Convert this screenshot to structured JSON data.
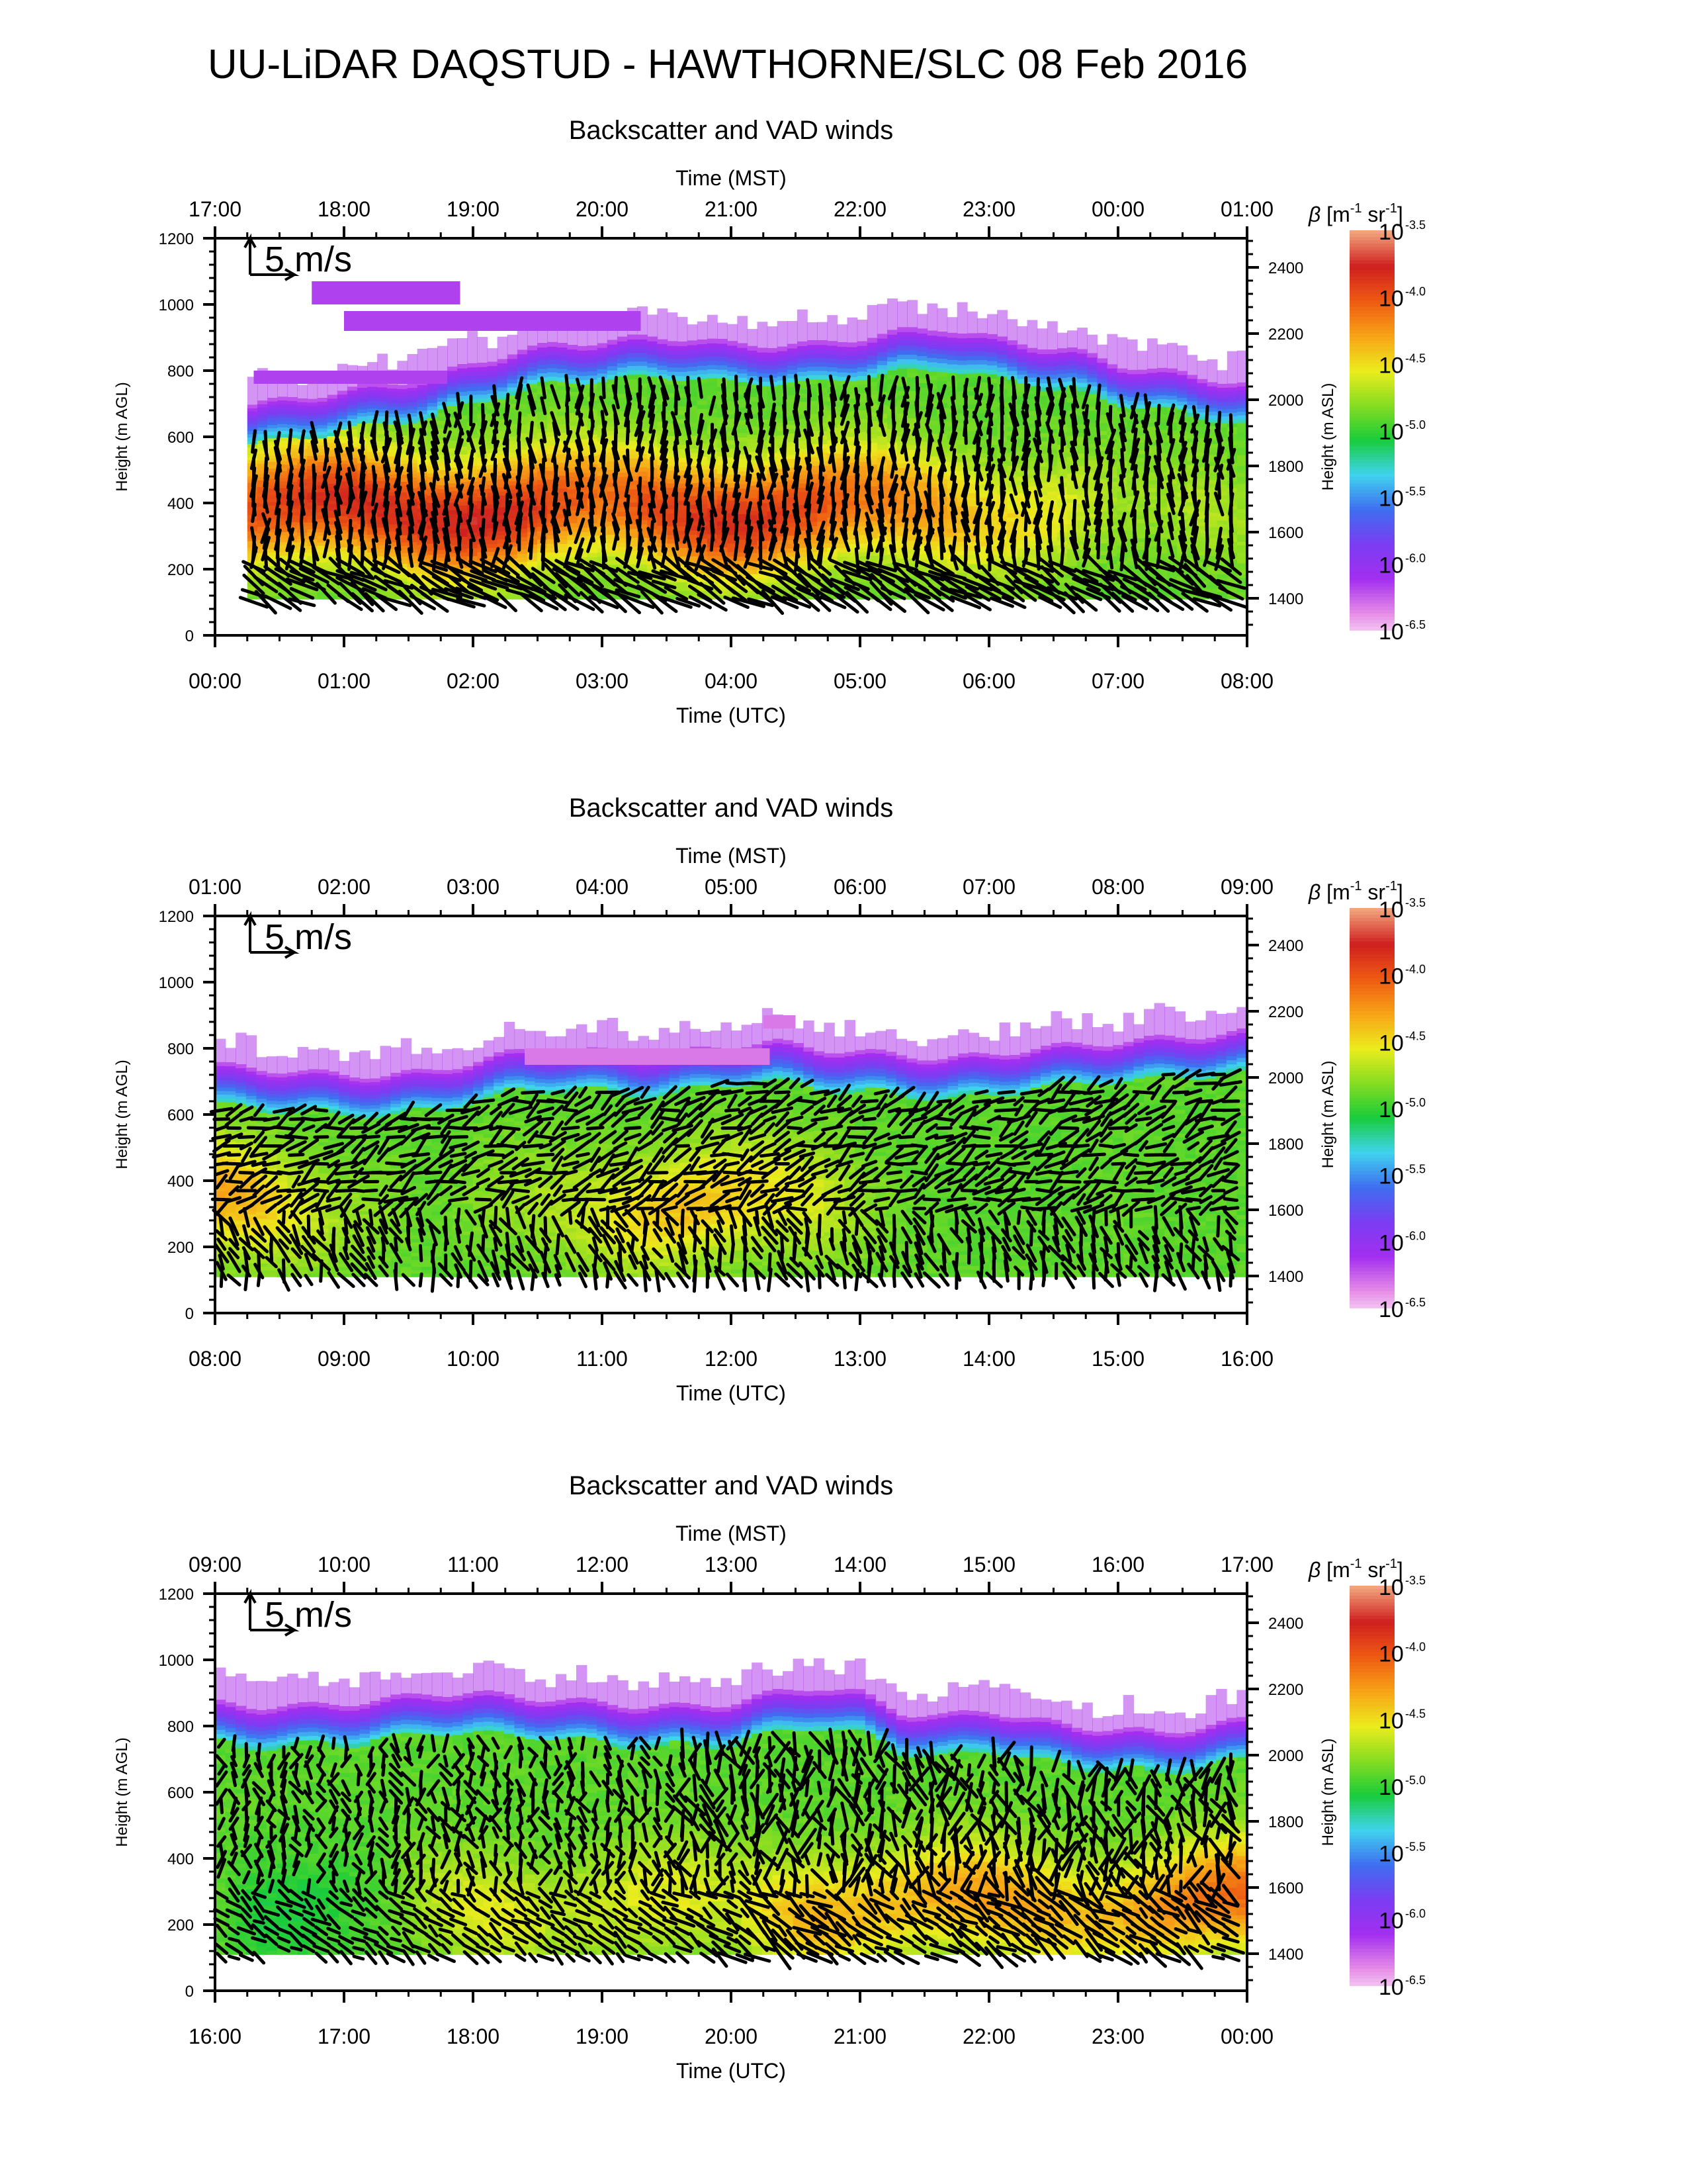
{
  "main_title": "UU-LiDAR DAQSTUD - HAWTHORNE/SLC 08 Feb 2016",
  "colors": {
    "scale": [
      "#ffffff",
      "#e68ce6",
      "#a32ef0",
      "#7a3df2",
      "#3e6ff0",
      "#3fd4ee",
      "#18cc3a",
      "#86dd21",
      "#ecec1d",
      "#f7a316",
      "#ee5a12",
      "#cf1f1f",
      "#f1a47c"
    ],
    "axis": "#000000",
    "arrow": "#000000"
  },
  "chart_data": [
    {
      "type": "heatmap",
      "title": "Backscatter and VAD winds",
      "top_xlabel": "Time (MST)",
      "top_ticks": [
        "17:00",
        "18:00",
        "19:00",
        "20:00",
        "21:00",
        "22:00",
        "23:00",
        "00:00",
        "01:00"
      ],
      "xlabel": "Time (UTC)",
      "x_ticks": [
        "00:00",
        "01:00",
        "02:00",
        "03:00",
        "04:00",
        "05:00",
        "06:00",
        "07:00",
        "08:00"
      ],
      "x_range_hours": [
        0,
        8
      ],
      "ylabel": "Height (m AGL)",
      "y_ticks": [
        0,
        200,
        400,
        600,
        800,
        1000,
        1200
      ],
      "ylim": [
        0,
        1200
      ],
      "ylabel_right": "Height (m ASL)",
      "y_right_ticks": [
        1400,
        1600,
        1800,
        2000,
        2200,
        2400
      ],
      "ref_arrow_label": "5 m/s",
      "colorbar": {
        "label_symbol": "β",
        "label_unit": "[m",
        "label_exp1": "-1",
        "label_mid": " sr",
        "label_exp2": "-1",
        "label_close": "]",
        "base": "10",
        "exponents": [
          "-3.5",
          "-4.0",
          "-4.5",
          "-5.0",
          "-5.5",
          "-6.0",
          "-6.5"
        ]
      },
      "aerosol_top_m": [
        680,
        700,
        720,
        740,
        760,
        780,
        820,
        860,
        880,
        890,
        900,
        900,
        880,
        880,
        880,
        900,
        920,
        930,
        900,
        880,
        860,
        820,
        800,
        780,
        760
      ],
      "bright_layer_center_m": 380,
      "bright_strength": [
        0.8,
        0.85,
        0.88,
        0.9,
        0.9,
        0.9,
        0.92,
        0.9,
        0.85,
        0.8,
        0.85,
        0.88,
        0.9,
        0.88,
        0.85,
        0.8,
        0.78,
        0.75,
        0.7,
        0.68,
        0.65,
        0.6,
        0.6,
        0.62,
        0.6
      ],
      "wind_pattern": "night"
    },
    {
      "type": "heatmap",
      "title": "Backscatter and VAD winds",
      "top_xlabel": "Time (MST)",
      "top_ticks": [
        "01:00",
        "02:00",
        "03:00",
        "04:00",
        "05:00",
        "06:00",
        "07:00",
        "08:00",
        "09:00"
      ],
      "xlabel": "Time (UTC)",
      "x_ticks": [
        "08:00",
        "09:00",
        "10:00",
        "11:00",
        "12:00",
        "13:00",
        "14:00",
        "15:00",
        "16:00"
      ],
      "x_range_hours": [
        8,
        16
      ],
      "ylabel": "Height (m AGL)",
      "y_ticks": [
        0,
        200,
        400,
        600,
        800,
        1000,
        1200
      ],
      "ylim": [
        0,
        1200
      ],
      "ylabel_right": "Height (m ASL)",
      "y_right_ticks": [
        1400,
        1600,
        1800,
        2000,
        2200,
        2400
      ],
      "ref_arrow_label": "5 m/s",
      "colorbar": {
        "label_symbol": "β",
        "label_unit": "[m",
        "label_exp1": "-1",
        "label_mid": " sr",
        "label_exp2": "-1",
        "label_close": "]",
        "base": "10",
        "exponents": [
          "-3.5",
          "-4.0",
          "-4.5",
          "-5.0",
          "-5.5",
          "-6.0",
          "-6.5"
        ]
      },
      "aerosol_top_m": [
        750,
        740,
        730,
        720,
        720,
        730,
        760,
        790,
        800,
        790,
        780,
        790,
        810,
        820,
        800,
        790,
        780,
        770,
        780,
        800,
        810,
        820,
        830,
        840,
        850
      ],
      "bright_layer_center_m": 330,
      "bright_strength": [
        0.75,
        0.72,
        0.65,
        0.6,
        0.58,
        0.55,
        0.58,
        0.6,
        0.62,
        0.65,
        0.7,
        0.72,
        0.7,
        0.68,
        0.65,
        0.6,
        0.56,
        0.55,
        0.55,
        0.55,
        0.55,
        0.56,
        0.55,
        0.55,
        0.55
      ],
      "wind_pattern": "early"
    },
    {
      "type": "heatmap",
      "title": "Backscatter and VAD winds",
      "top_xlabel": "Time (MST)",
      "top_ticks": [
        "09:00",
        "10:00",
        "11:00",
        "12:00",
        "13:00",
        "14:00",
        "15:00",
        "16:00",
        "17:00"
      ],
      "xlabel": "Time (UTC)",
      "x_ticks": [
        "16:00",
        "17:00",
        "18:00",
        "19:00",
        "20:00",
        "21:00",
        "22:00",
        "23:00",
        "00:00"
      ],
      "x_range_hours": [
        16,
        24
      ],
      "ylabel": "Height (m AGL)",
      "y_ticks": [
        0,
        200,
        400,
        600,
        800,
        1000,
        1200
      ],
      "ylim": [
        0,
        1200
      ],
      "ylabel_right": "Height (m ASL)",
      "y_right_ticks": [
        1400,
        1600,
        1800,
        2000,
        2200,
        2400
      ],
      "ref_arrow_label": "5 m/s",
      "colorbar": {
        "label_symbol": "β",
        "label_unit": "[m",
        "label_exp1": "-1",
        "label_mid": " sr",
        "label_exp2": "-1",
        "label_close": "]",
        "base": "10",
        "exponents": [
          "-3.5",
          "-4.0",
          "-4.5",
          "-5.0",
          "-5.5",
          "-6.0",
          "-6.5"
        ]
      },
      "aerosol_top_m": [
        870,
        860,
        860,
        870,
        880,
        900,
        900,
        890,
        880,
        870,
        860,
        860,
        870,
        900,
        920,
        900,
        840,
        830,
        850,
        820,
        800,
        790,
        780,
        800,
        820
      ],
      "bright_layer_center_m": 260,
      "bright_strength": [
        0.55,
        0.5,
        0.5,
        0.52,
        0.55,
        0.62,
        0.66,
        0.66,
        0.62,
        0.64,
        0.66,
        0.66,
        0.64,
        0.7,
        0.74,
        0.72,
        0.72,
        0.74,
        0.76,
        0.74,
        0.72,
        0.72,
        0.76,
        0.8,
        0.82
      ],
      "wind_pattern": "day"
    }
  ]
}
